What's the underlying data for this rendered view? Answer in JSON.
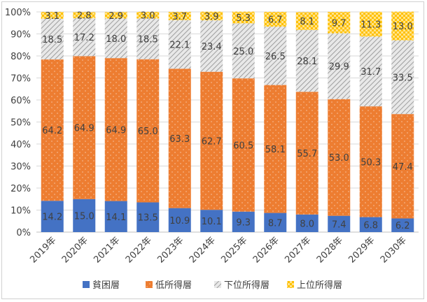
{
  "chart_data": {
    "type": "bar",
    "stacked": true,
    "categories": [
      "2019年",
      "2020年",
      "2021年",
      "2022年",
      "2023年",
      "2024年",
      "2025年",
      "2026年",
      "2027年",
      "2028年",
      "2029年",
      "2030年"
    ],
    "series": [
      {
        "name": "貧困層",
        "color": "#4472c4",
        "values": [
          14.2,
          15.0,
          14.1,
          13.5,
          10.9,
          10.1,
          9.3,
          8.7,
          8.0,
          7.4,
          6.8,
          6.2
        ]
      },
      {
        "name": "低所得層",
        "color": "#ed7d31",
        "values": [
          64.2,
          64.9,
          64.9,
          65.0,
          63.3,
          62.7,
          60.5,
          58.1,
          55.7,
          53.0,
          50.3,
          47.4
        ]
      },
      {
        "name": "下位所得層",
        "color": "#c8c8c8",
        "values": [
          18.5,
          17.2,
          18.0,
          18.5,
          22.1,
          23.4,
          25.0,
          26.5,
          28.1,
          29.9,
          31.7,
          33.5
        ]
      },
      {
        "name": "上位所得層",
        "color": "#ffc000",
        "values": [
          3.1,
          2.8,
          2.9,
          3.0,
          3.7,
          3.9,
          5.3,
          6.7,
          8.1,
          9.7,
          11.3,
          13.0
        ]
      }
    ],
    "ylim": [
      0,
      100
    ],
    "yticks": [
      "0%",
      "10%",
      "20%",
      "30%",
      "40%",
      "50%",
      "60%",
      "70%",
      "80%",
      "90%",
      "100%"
    ],
    "grid": true,
    "legend_position": "bottom"
  }
}
